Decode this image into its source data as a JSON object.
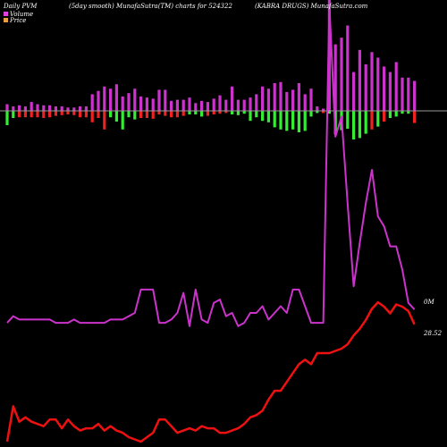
{
  "header": {
    "left_title": "Daily PVM",
    "center_title": "(5day smooth) MunafaSutra(TM) charts for 524322",
    "right_title": "(KABRA DRUGS) MunafaSutra.com"
  },
  "legend": [
    {
      "label": "Volume",
      "color": "#e040e0"
    },
    {
      "label": "Price",
      "color": "#e8a040"
    }
  ],
  "colors": {
    "background": "#000000",
    "pvm_up": "#cc33cc",
    "pvm_down_green": "#33ee33",
    "pvm_down_red": "#ee2222",
    "volume_line": "#cc33cc",
    "price_line": "#ee1111",
    "zero_line": "#999999"
  },
  "chart_data": {
    "type": "bar+line",
    "title": "Daily PVM",
    "volume_label": "0M",
    "price_label": "28.52",
    "x": [
      1,
      2,
      3,
      4,
      5,
      6,
      7,
      8,
      9,
      10,
      11,
      12,
      13,
      14,
      15,
      16,
      17,
      18,
      19,
      20,
      21,
      22,
      23,
      24,
      25,
      26,
      27,
      28,
      29,
      30,
      31,
      32,
      33,
      34,
      35,
      36,
      37,
      38,
      39,
      40,
      41,
      42,
      43,
      44,
      45,
      46,
      47,
      48,
      49,
      50,
      51,
      52,
      53,
      54,
      55,
      56,
      57,
      58,
      59,
      60,
      61,
      62,
      63,
      64,
      65,
      66,
      67,
      68
    ],
    "pvm_up": [
      6,
      4,
      5,
      4,
      8,
      6,
      5,
      5,
      4,
      4,
      3,
      3,
      4,
      4,
      15,
      18,
      22,
      20,
      24,
      13,
      16,
      20,
      13,
      12,
      11,
      19,
      19,
      9,
      10,
      10,
      12,
      7,
      9,
      8,
      11,
      14,
      10,
      22,
      10,
      10,
      12,
      15,
      22,
      20,
      25,
      26,
      17,
      19,
      25,
      15,
      20,
      4,
      2,
      100,
      60,
      66,
      77,
      35,
      55,
      42,
      53,
      48,
      40,
      35,
      44,
      30,
      30,
      27
    ],
    "pvm_down": [
      -20,
      -10,
      -9,
      -9,
      -9,
      -9,
      -10,
      -9,
      -7,
      -6,
      -5,
      -6,
      -9,
      -9,
      -16,
      -10,
      -26,
      -9,
      -15,
      -26,
      -9,
      -12,
      -10,
      -10,
      -11,
      -5,
      -7,
      -9,
      -9,
      -7,
      -5,
      -5,
      -8,
      -7,
      -5,
      -4,
      -3,
      -5,
      -6,
      -4,
      -14,
      -9,
      -14,
      -16,
      -23,
      -26,
      -28,
      -26,
      -30,
      -28,
      -8,
      -3,
      -3,
      -4,
      -33,
      -27,
      -25,
      -40,
      -38,
      -32,
      -26,
      -22,
      -15,
      -10,
      -8,
      -4,
      -4,
      -17
    ],
    "down_color": [
      "g",
      "g",
      "r",
      "r",
      "r",
      "r",
      "r",
      "r",
      "r",
      "r",
      "r",
      "r",
      "r",
      "r",
      "r",
      "r",
      "r",
      "g",
      "g",
      "g",
      "g",
      "g",
      "r",
      "r",
      "r",
      "r",
      "r",
      "r",
      "r",
      "r",
      "g",
      "g",
      "g",
      "r",
      "r",
      "r",
      "r",
      "g",
      "g",
      "g",
      "g",
      "g",
      "g",
      "g",
      "g",
      "g",
      "g",
      "g",
      "g",
      "g",
      "g",
      "g",
      "r",
      "g",
      "g",
      "g",
      "g",
      "g",
      "g",
      "g",
      "r",
      "g",
      "r",
      "g",
      "g",
      "g",
      "g",
      "r"
    ],
    "volume": [
      4,
      6,
      5,
      5,
      5,
      5,
      5,
      5,
      4,
      4,
      4,
      5,
      4,
      4,
      4,
      4,
      4,
      5,
      5,
      5,
      6,
      7,
      14,
      14,
      14,
      4,
      4,
      5,
      7,
      13,
      3,
      14,
      5,
      4,
      10,
      11,
      6,
      7,
      3,
      4,
      7,
      7,
      9,
      5,
      7,
      9,
      7,
      14,
      14,
      9,
      4,
      4,
      4,
      100,
      60,
      66,
      40,
      15,
      28,
      40,
      50,
      36,
      33,
      27,
      27,
      20,
      10,
      8
    ],
    "price": [
      27.0,
      27.8,
      27.45,
      27.55,
      27.45,
      27.4,
      27.35,
      27.5,
      27.5,
      27.3,
      27.5,
      27.35,
      27.25,
      27.3,
      27.3,
      27.4,
      27.25,
      27.35,
      27.25,
      27.2,
      27.1,
      27.05,
      27.0,
      27.1,
      27.2,
      27.5,
      27.5,
      27.35,
      27.2,
      27.25,
      27.3,
      27.25,
      27.35,
      27.3,
      27.3,
      27.2,
      27.2,
      27.25,
      27.3,
      27.4,
      27.55,
      27.6,
      27.7,
      27.95,
      28.15,
      28.15,
      28.35,
      28.55,
      28.75,
      28.85,
      28.75,
      29.0,
      29.0,
      29.0,
      29.05,
      29.1,
      29.2,
      29.4,
      29.55,
      29.75,
      30.0,
      30.15,
      30.05,
      29.9,
      30.1,
      30.05,
      29.95,
      29.65
    ]
  }
}
